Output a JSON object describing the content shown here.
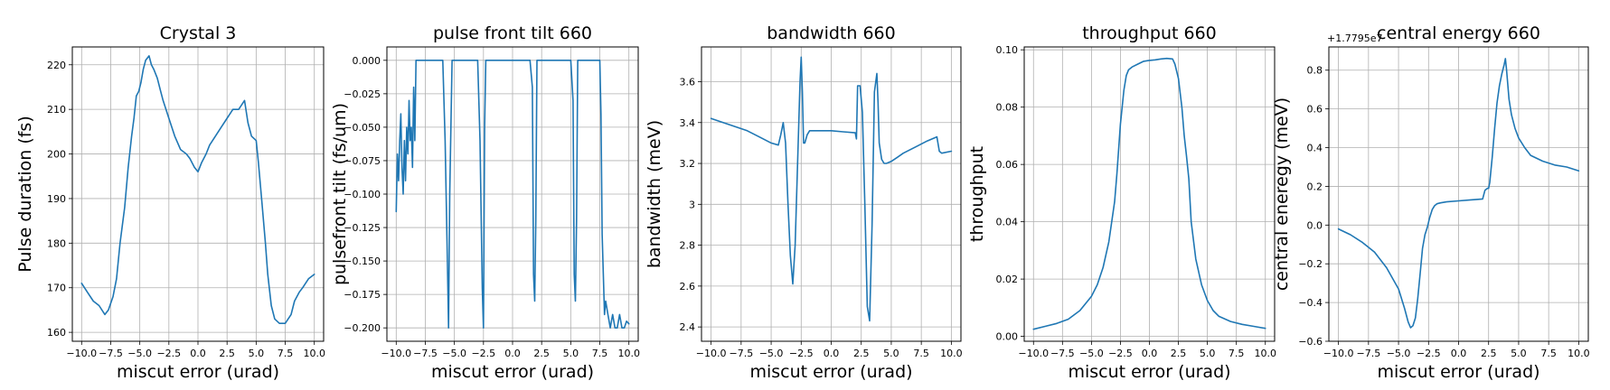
{
  "chart_data": [
    {
      "type": "line",
      "title": "Crystal 3",
      "xlabel": "miscut error (urad)",
      "ylabel": "Pulse duration (fs)",
      "xlim": [
        -10.8,
        10.8
      ],
      "ylim": [
        158,
        224
      ],
      "xticks": [
        -10.0,
        -7.5,
        -5.0,
        -2.5,
        0.0,
        2.5,
        5.0,
        7.5,
        10.0
      ],
      "yticks": [
        160,
        170,
        180,
        190,
        200,
        210,
        220
      ],
      "grid": true,
      "color": "#1f77b4",
      "x": [
        -10,
        -9.5,
        -9,
        -8.5,
        -8,
        -7.7,
        -7.3,
        -7,
        -6.7,
        -6.3,
        -6,
        -5.7,
        -5.5,
        -5.3,
        -5.1,
        -4.9,
        -4.7,
        -4.5,
        -4.2,
        -4,
        -3.8,
        -3.5,
        -3.2,
        -3,
        -2.5,
        -2,
        -1.5,
        -1,
        -0.7,
        -0.3,
        0,
        0.3,
        0.7,
        1,
        1.5,
        2,
        2.5,
        3,
        3.5,
        4,
        4.3,
        4.6,
        5,
        5.2,
        5.5,
        5.8,
        6,
        6.3,
        6.6,
        7,
        7.5,
        8,
        8.3,
        8.7,
        9,
        9.5,
        10
      ],
      "y": [
        171,
        169,
        167,
        166,
        164,
        165,
        168,
        172,
        180,
        188,
        197,
        204,
        208,
        213,
        214,
        216,
        219,
        221,
        222,
        220,
        219,
        217,
        214,
        212,
        208,
        204,
        201,
        200,
        199,
        197,
        196,
        198,
        200,
        202,
        204,
        206,
        208,
        210,
        210,
        212,
        207,
        204,
        203,
        198,
        189,
        180,
        173,
        166,
        163,
        162,
        162,
        164,
        167,
        169,
        170,
        172,
        173
      ]
    },
    {
      "type": "line",
      "title": "pulse front tilt 660",
      "xlabel": "miscut error (urad)",
      "ylabel": "pulsefront tilt (fs/um)",
      "xlim": [
        -10.8,
        10.8
      ],
      "ylim": [
        -0.21,
        0.01
      ],
      "xticks": [
        -10.0,
        -7.5,
        -5.0,
        -2.5,
        0.0,
        2.5,
        5.0,
        7.5,
        10.0
      ],
      "yticks": [
        0.0,
        -0.025,
        -0.05,
        -0.075,
        -0.1,
        -0.125,
        -0.15,
        -0.175,
        -0.2
      ],
      "ytick_labels": [
        "0.000",
        "−0.025",
        "−0.050",
        "−0.075",
        "−0.100",
        "−0.125",
        "−0.150",
        "−0.175",
        "−0.200"
      ],
      "grid": true,
      "color": "#1f77b4",
      "x": [
        -10,
        -9.9,
        -9.8,
        -9.7,
        -9.6,
        -9.5,
        -9.4,
        -9.3,
        -9.2,
        -9.1,
        -9,
        -8.9,
        -8.8,
        -8.7,
        -8.6,
        -8.5,
        -8.4,
        -8.3,
        -8.1,
        -7.9,
        -7.5,
        -7,
        -6.5,
        -6,
        -5.8,
        -5.6,
        -5.5,
        -5.4,
        -5.2,
        -5,
        -4.5,
        -4,
        -3.5,
        -3,
        -2.8,
        -2.6,
        -2.5,
        -2.4,
        -2.3,
        -2.2,
        -2,
        -1.5,
        -1,
        -0.5,
        0,
        0.5,
        1,
        1.5,
        1.7,
        1.8,
        1.9,
        2,
        2.1,
        2.2,
        2.4,
        2.5,
        3,
        3.5,
        4,
        4.5,
        5,
        5.2,
        5.3,
        5.4,
        5.5,
        5.6,
        5.8,
        6,
        6.5,
        7,
        7.4,
        7.5,
        7.6,
        7.7,
        7.8,
        7.9,
        8,
        8.2,
        8.4,
        8.6,
        8.8,
        9,
        9.2,
        9.4,
        9.6,
        9.8,
        10
      ],
      "y": [
        -0.113,
        -0.07,
        -0.09,
        -0.06,
        -0.04,
        -0.08,
        -0.1,
        -0.06,
        -0.09,
        -0.05,
        -0.07,
        -0.03,
        -0.06,
        -0.05,
        -0.08,
        -0.02,
        -0.06,
        0,
        0,
        0,
        0,
        0,
        0,
        0,
        -0.06,
        -0.15,
        -0.2,
        -0.1,
        0,
        0,
        0,
        0,
        0,
        0,
        -0.06,
        -0.17,
        -0.2,
        -0.05,
        0,
        0,
        0,
        0,
        0,
        0,
        0,
        0,
        0,
        0,
        -0.02,
        -0.16,
        -0.18,
        -0.12,
        0,
        0,
        0,
        0,
        0,
        0,
        0,
        0,
        0,
        -0.03,
        -0.16,
        -0.18,
        -0.12,
        0,
        0,
        0,
        0,
        0,
        0,
        0,
        -0.04,
        -0.13,
        -0.16,
        -0.19,
        -0.18,
        -0.19,
        -0.2,
        -0.19,
        -0.2,
        -0.2,
        -0.19,
        -0.2,
        -0.2,
        -0.195,
        -0.197
      ]
    },
    {
      "type": "line",
      "title": "bandwidth 660",
      "xlabel": "miscut error (urad)",
      "ylabel": "bandwidth (meV)",
      "xlim": [
        -10.8,
        10.8
      ],
      "ylim": [
        2.33,
        3.77
      ],
      "xticks": [
        -10.0,
        -7.5,
        -5.0,
        -2.5,
        0.0,
        2.5,
        5.0,
        7.5,
        10.0
      ],
      "yticks": [
        2.4,
        2.6,
        2.8,
        3.0,
        3.2,
        3.4,
        3.6
      ],
      "grid": true,
      "color": "#1f77b4",
      "x": [
        -10,
        -9,
        -8,
        -7,
        -6,
        -5,
        -4.4,
        -4.2,
        -4,
        -3.8,
        -3.6,
        -3.4,
        -3.2,
        -3,
        -2.8,
        -2.6,
        -2.5,
        -2.4,
        -2.3,
        -2.2,
        -2,
        -1.8,
        -1.5,
        -1,
        0,
        1,
        2,
        2.1,
        2.2,
        2.4,
        2.6,
        2.8,
        3,
        3.2,
        3.4,
        3.6,
        3.8,
        3.9,
        4,
        4.2,
        4.4,
        4.6,
        5,
        5.5,
        6,
        7,
        8,
        8.8,
        9,
        9.2,
        10
      ],
      "y": [
        3.42,
        3.4,
        3.38,
        3.36,
        3.33,
        3.3,
        3.29,
        3.34,
        3.4,
        3.3,
        3.0,
        2.75,
        2.61,
        2.8,
        3.2,
        3.6,
        3.72,
        3.55,
        3.3,
        3.3,
        3.34,
        3.36,
        3.36,
        3.36,
        3.36,
        3.355,
        3.35,
        3.32,
        3.58,
        3.58,
        3.45,
        3.0,
        2.5,
        2.43,
        2.9,
        3.55,
        3.64,
        3.5,
        3.3,
        3.22,
        3.2,
        3.2,
        3.21,
        3.23,
        3.25,
        3.28,
        3.31,
        3.33,
        3.26,
        3.25,
        3.26
      ]
    },
    {
      "type": "line",
      "title": "throughput 660",
      "xlabel": "miscut error (urad)",
      "ylabel": "throughput",
      "xlim": [
        -10.8,
        10.8
      ],
      "ylim": [
        -0.0017,
        0.101
      ],
      "xticks": [
        -10.0,
        -7.5,
        -5.0,
        -2.5,
        0.0,
        2.5,
        5.0,
        7.5,
        10.0
      ],
      "yticks": [
        0.0,
        0.02,
        0.04,
        0.06,
        0.08,
        0.1
      ],
      "ytick_labels": [
        "0.00",
        "0.02",
        "0.04",
        "0.06",
        "0.08",
        "0.10"
      ],
      "grid": true,
      "color": "#1f77b4",
      "x": [
        -10,
        -9,
        -8,
        -7,
        -6,
        -5,
        -4.5,
        -4,
        -3.5,
        -3,
        -2.8,
        -2.5,
        -2.2,
        -2,
        -1.8,
        -1.5,
        -1,
        -0.5,
        0,
        0.5,
        1,
        1.5,
        2,
        2.2,
        2.5,
        2.8,
        3,
        3.2,
        3.4,
        3.6,
        4,
        4.5,
        5,
        5.5,
        6,
        7,
        8,
        9,
        10
      ],
      "y": [
        0.0025,
        0.0035,
        0.0045,
        0.006,
        0.009,
        0.014,
        0.018,
        0.024,
        0.033,
        0.047,
        0.057,
        0.074,
        0.086,
        0.091,
        0.093,
        0.094,
        0.095,
        0.096,
        0.0963,
        0.0965,
        0.0968,
        0.097,
        0.0968,
        0.095,
        0.09,
        0.08,
        0.07,
        0.063,
        0.055,
        0.04,
        0.027,
        0.018,
        0.0125,
        0.009,
        0.007,
        0.0052,
        0.0042,
        0.0035,
        0.0028
      ]
    },
    {
      "type": "line",
      "title": "central energy 660",
      "xlabel": "miscut error (urad)",
      "ylabel": "central eneregy (meV)",
      "offset_text": "+1.7795e7",
      "xlim": [
        -10.8,
        10.8
      ],
      "ylim": [
        -0.6,
        0.92
      ],
      "xticks": [
        -10.0,
        -7.5,
        -5.0,
        -2.5,
        0.0,
        2.5,
        5.0,
        7.5,
        10.0
      ],
      "yticks": [
        -0.6,
        -0.4,
        -0.2,
        0.0,
        0.2,
        0.4,
        0.6,
        0.8
      ],
      "ytick_labels": [
        "−0.6",
        "−0.4",
        "−0.2",
        "0.0",
        "0.2",
        "0.4",
        "0.6",
        "0.8"
      ],
      "grid": true,
      "color": "#1f77b4",
      "x": [
        -10,
        -9,
        -8,
        -7,
        -6,
        -5,
        -4.5,
        -4.2,
        -4,
        -3.8,
        -3.6,
        -3.4,
        -3.2,
        -3,
        -2.8,
        -2.6,
        -2.4,
        -2.2,
        -2,
        -1.8,
        -1.5,
        -1,
        0,
        1,
        2,
        2.2,
        2.4,
        2.5,
        2.6,
        2.8,
        3,
        3.2,
        3.4,
        3.6,
        3.8,
        3.9,
        4,
        4.2,
        4.4,
        4.7,
        5,
        5.5,
        6,
        7,
        8,
        9,
        10
      ],
      "y": [
        -0.02,
        -0.05,
        -0.09,
        -0.14,
        -0.22,
        -0.33,
        -0.43,
        -0.5,
        -0.53,
        -0.52,
        -0.48,
        -0.38,
        -0.25,
        -0.12,
        -0.05,
        -0.01,
        0.04,
        0.08,
        0.1,
        0.11,
        0.115,
        0.12,
        0.125,
        0.13,
        0.135,
        0.18,
        0.19,
        0.19,
        0.22,
        0.35,
        0.5,
        0.63,
        0.72,
        0.78,
        0.83,
        0.86,
        0.8,
        0.65,
        0.57,
        0.5,
        0.45,
        0.4,
        0.36,
        0.33,
        0.31,
        0.3,
        0.28
      ]
    }
  ]
}
